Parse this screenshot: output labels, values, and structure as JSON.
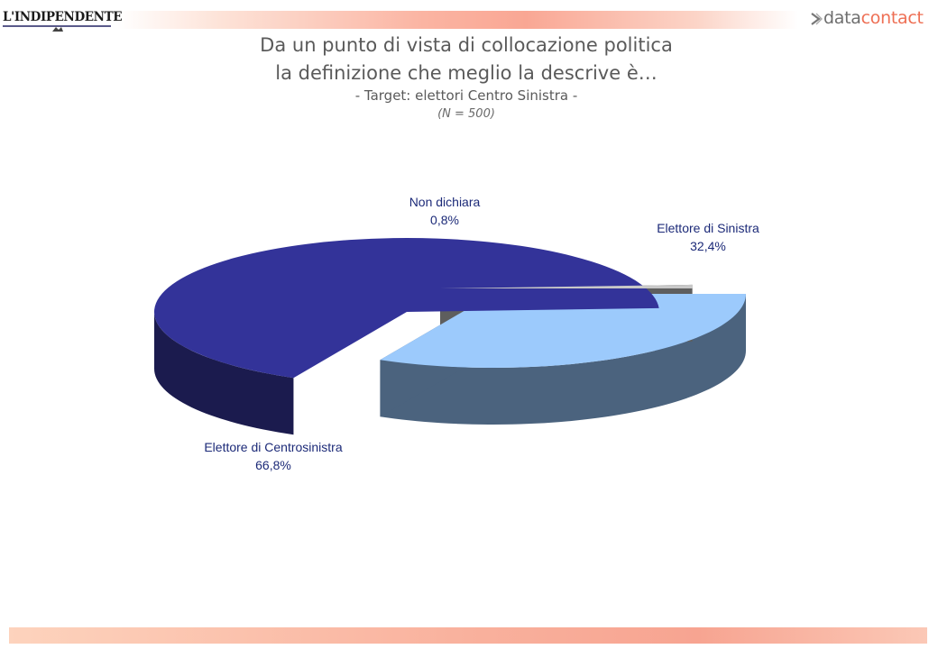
{
  "header": {
    "left_logo": "L'INDIPENDENTE",
    "right_logo_data": "data",
    "right_logo_contact": "contact"
  },
  "title": {
    "line1": "Da un punto di vista di collocazione politica",
    "line2": "la definizione che meglio la descrive è…",
    "subtitle": "- Target: elettori Centro Sinistra -",
    "note": "(N = 500)"
  },
  "chart_data": {
    "type": "pie",
    "style": "3d-exploded",
    "slices": [
      {
        "name": "Elettore di Sinistra",
        "value": 32.4,
        "value_label": "32,4%",
        "color": "#9ccafc",
        "side_color": "#4b637e"
      },
      {
        "name": "Elettore di Centrosinistra",
        "value": 66.8,
        "value_label": "66,8%",
        "color": "#333399",
        "side_color": "#1b1b4e"
      },
      {
        "name": "Non dichiara",
        "value": 0.8,
        "value_label": "0,8%",
        "color": "#c8c8c8",
        "side_color": "#5e5e5e"
      }
    ]
  }
}
